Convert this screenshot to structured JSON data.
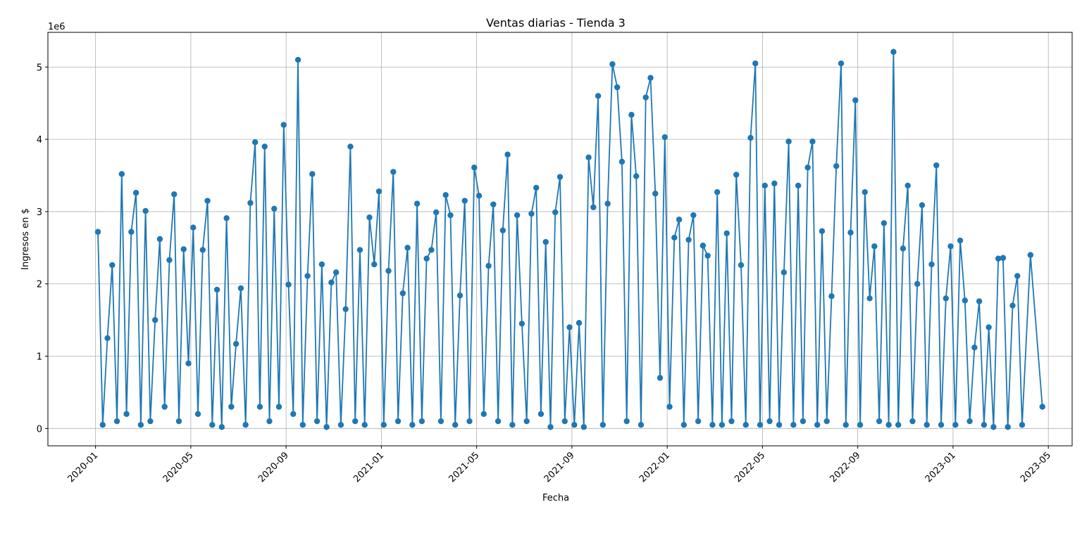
{
  "chart_data": {
    "type": "line",
    "title": "Ventas diarias - Tienda 3",
    "x_label": "Fecha",
    "y_label": "Ingresos en $",
    "y_offset_label": "1e6",
    "x": [
      "2020-01",
      "2020-01",
      "2020-01",
      "2020-01",
      "2020-01",
      "2020-02",
      "2020-02",
      "2020-02",
      "2020-02",
      "2020-02",
      "2020-03",
      "2020-03",
      "2020-03",
      "2020-03",
      "2020-03",
      "2020-04",
      "2020-04",
      "2020-04",
      "2020-04",
      "2020-04",
      "2020-05",
      "2020-05",
      "2020-05",
      "2020-05",
      "2020-05",
      "2020-06",
      "2020-06",
      "2020-06",
      "2020-06",
      "2020-06",
      "2020-07",
      "2020-07",
      "2020-07",
      "2020-07",
      "2020-07",
      "2020-08",
      "2020-08",
      "2020-08",
      "2020-08",
      "2020-08",
      "2020-09",
      "2020-09",
      "2020-09",
      "2020-09",
      "2020-09",
      "2020-10",
      "2020-10",
      "2020-10",
      "2020-10",
      "2020-10",
      "2020-11",
      "2020-11",
      "2020-11",
      "2020-11",
      "2020-11",
      "2020-12",
      "2020-12",
      "2020-12",
      "2020-12",
      "2020-12",
      "2021-01",
      "2021-01",
      "2021-01",
      "2021-01",
      "2021-01",
      "2021-02",
      "2021-02",
      "2021-02",
      "2021-02",
      "2021-02",
      "2021-03",
      "2021-03",
      "2021-03",
      "2021-03",
      "2021-03",
      "2021-04",
      "2021-04",
      "2021-04",
      "2021-04",
      "2021-04",
      "2021-05",
      "2021-05",
      "2021-05",
      "2021-05",
      "2021-05",
      "2021-06",
      "2021-06",
      "2021-06",
      "2021-06",
      "2021-06",
      "2021-07",
      "2021-07",
      "2021-07",
      "2021-07",
      "2021-07",
      "2021-08",
      "2021-08",
      "2021-08",
      "2021-08",
      "2021-08",
      "2021-09",
      "2021-09",
      "2021-09",
      "2021-09",
      "2021-09",
      "2021-10",
      "2021-10",
      "2021-10",
      "2021-10",
      "2021-10",
      "2021-11",
      "2021-11",
      "2021-11",
      "2021-11",
      "2021-11",
      "2021-12",
      "2021-12",
      "2021-12",
      "2021-12",
      "2021-12",
      "2022-01",
      "2022-01",
      "2022-01",
      "2022-01",
      "2022-01",
      "2022-02",
      "2022-02",
      "2022-02",
      "2022-02",
      "2022-02",
      "2022-03",
      "2022-03",
      "2022-03",
      "2022-03",
      "2022-03",
      "2022-04",
      "2022-04",
      "2022-04",
      "2022-04",
      "2022-04",
      "2022-05",
      "2022-05",
      "2022-05",
      "2022-05",
      "2022-05",
      "2022-06",
      "2022-06",
      "2022-06",
      "2022-06",
      "2022-06",
      "2022-07",
      "2022-07",
      "2022-07",
      "2022-07",
      "2022-07",
      "2022-08",
      "2022-08",
      "2022-08",
      "2022-08",
      "2022-08",
      "2022-09",
      "2022-09",
      "2022-09",
      "2022-09",
      "2022-09",
      "2022-10",
      "2022-10",
      "2022-10",
      "2022-10",
      "2022-10",
      "2022-11",
      "2022-11",
      "2022-11",
      "2022-11",
      "2022-11",
      "2022-12",
      "2022-12",
      "2022-12",
      "2022-12",
      "2022-12",
      "2023-01",
      "2023-01",
      "2023-01",
      "2023-01",
      "2023-01",
      "2023-02",
      "2023-02",
      "2023-02",
      "2023-02",
      "2023-02",
      "2023-03",
      "2023-03",
      "2023-03",
      "2023-03",
      "2023-03",
      "2023-04",
      "2023-04"
    ],
    "series": [
      {
        "name": "Tienda 3",
        "color": "#1f77b4",
        "values": [
          2.72,
          0.05,
          1.25,
          2.26,
          0.1,
          3.52,
          0.2,
          2.72,
          3.26,
          0.05,
          3.01,
          0.1,
          1.5,
          2.62,
          0.3,
          2.33,
          3.24,
          0.1,
          2.48,
          0.9,
          2.78,
          0.2,
          2.47,
          3.15,
          0.05,
          1.92,
          0.02,
          2.91,
          0.3,
          1.17,
          1.94,
          0.05,
          3.12,
          3.96,
          0.3,
          3.9,
          0.1,
          3.04,
          0.3,
          4.2,
          1.99,
          0.2,
          5.1,
          0.05,
          2.11,
          3.52,
          0.1,
          2.27,
          0.02,
          2.02,
          2.16,
          0.05,
          1.65,
          3.9,
          0.1,
          2.47,
          0.05,
          2.92,
          2.27,
          3.28,
          0.05,
          2.18,
          3.55,
          0.1,
          1.87,
          2.5,
          0.05,
          3.11,
          0.1,
          2.35,
          2.47,
          2.99,
          0.1,
          3.23,
          2.95,
          0.05,
          1.84,
          3.15,
          0.1,
          3.61,
          3.22,
          0.2,
          2.25,
          3.1,
          0.1,
          2.74,
          3.79,
          0.05,
          2.95,
          1.45,
          0.1,
          2.97,
          3.33,
          0.2,
          2.58,
          0.02,
          2.99,
          3.48,
          0.1,
          1.4,
          0.05,
          1.46,
          0.02,
          3.75,
          3.06,
          4.6,
          0.05,
          3.11,
          5.04,
          4.72,
          3.69,
          0.1,
          4.34,
          3.49,
          0.05,
          4.58,
          4.85,
          3.25,
          0.7,
          4.03,
          0.3,
          2.64,
          2.89,
          0.05,
          2.61,
          2.95,
          0.1,
          2.53,
          2.39,
          0.05,
          3.27,
          0.05,
          2.7,
          0.1,
          3.51,
          2.26,
          0.05,
          4.02,
          5.05,
          0.05,
          3.36,
          0.1,
          3.39,
          0.05,
          2.16,
          3.97,
          0.05,
          3.36,
          0.1,
          3.61,
          3.97,
          0.05,
          2.73,
          0.1,
          1.83,
          3.63,
          5.05,
          0.05,
          2.71,
          4.54,
          0.05,
          3.27,
          1.8,
          2.52,
          0.1,
          2.84,
          0.05,
          5.21,
          0.05,
          2.49,
          3.36,
          0.1,
          2.0,
          3.09,
          0.05,
          2.27,
          3.64,
          0.05,
          1.8,
          2.52,
          0.05,
          2.6,
          1.77,
          0.1,
          1.12,
          1.76,
          0.05,
          1.4,
          0.02,
          2.35,
          2.36,
          0.02,
          1.7,
          2.11,
          0.05,
          2.4,
          0.3
        ]
      }
    ],
    "xlim": [
      "2019-11",
      "2023-06"
    ],
    "xticks": [
      "2020-01",
      "2020-05",
      "2020-09",
      "2021-01",
      "2021-05",
      "2021-09",
      "2022-01",
      "2022-05",
      "2022-09",
      "2023-01",
      "2023-05"
    ],
    "ylim": [
      -0.24,
      5.48
    ],
    "yticks": [
      0,
      1,
      2,
      3,
      4,
      5
    ],
    "grid": true
  }
}
